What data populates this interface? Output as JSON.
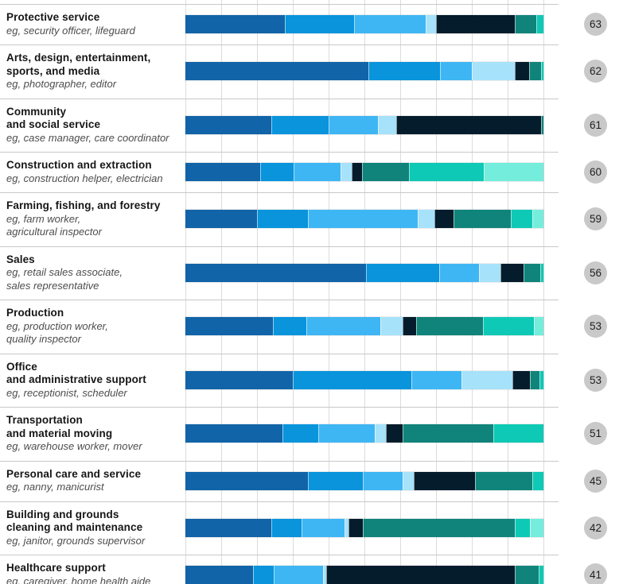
{
  "chart_data": {
    "type": "bar",
    "stacked": true,
    "orientation": "horizontal",
    "title": "",
    "xlabel": "",
    "ylabel": "",
    "x_range_percent": [
      0,
      100
    ],
    "gridline_interval_percent": 10,
    "grid": true,
    "legend": "not visible in crop",
    "colors": {
      "gridline": "#dcdcdc",
      "row_separator": "#c8c8c8",
      "badge_background": "#c9c9c9",
      "badge_text": "#1f1f1f",
      "title_text": "#161616",
      "subtitle_text": "#4d4d4d"
    },
    "segment_colors": [
      {
        "name": "dark-blue",
        "hex": "#1164A8"
      },
      {
        "name": "blue",
        "hex": "#0994DC"
      },
      {
        "name": "light-blue",
        "hex": "#3FB6F4"
      },
      {
        "name": "pale-blue",
        "hex": "#A6E2FA"
      },
      {
        "name": "navy",
        "hex": "#051C2C"
      },
      {
        "name": "dark-teal",
        "hex": "#10847B"
      },
      {
        "name": "teal",
        "hex": "#0EC9B5"
      },
      {
        "name": "mint",
        "hex": "#75EDDC"
      }
    ],
    "rows": [
      {
        "title": "Protective service",
        "subtitle": "eg, security officer, lifeguard",
        "score": "63",
        "values": [
          27.8,
          19.3,
          20.0,
          3.0,
          22.0,
          6.0,
          1.9,
          0
        ]
      },
      {
        "title": "Arts, design, entertainment,\nsports, and media",
        "subtitle": "eg, photographer, editor",
        "score": "62",
        "values": [
          51.0,
          20.0,
          9.0,
          12.0,
          4.0,
          3.3,
          0.7,
          0
        ]
      },
      {
        "title": "Community\nand social service",
        "subtitle": "eg, case manager, care coordinator",
        "score": "61",
        "values": [
          24.0,
          16.0,
          13.8,
          5.0,
          40.5,
          0.7,
          0,
          0
        ]
      },
      {
        "title": "Construction and extraction",
        "subtitle": "eg, construction helper, electrician",
        "score": "60",
        "values": [
          20.8,
          9.4,
          13.2,
          3.0,
          3.0,
          13.0,
          20.9,
          16.7
        ]
      },
      {
        "title": "Farming, fishing, and forestry",
        "subtitle": "eg, farm worker,\nagricultural inspector",
        "score": "59",
        "values": [
          20.0,
          14.2,
          30.6,
          4.7,
          5.3,
          16.2,
          6.0,
          3.0
        ]
      },
      {
        "title": "Sales",
        "subtitle": "eg, retail sales associate,\nsales representative",
        "score": "56",
        "values": [
          50.5,
          20.4,
          11.0,
          6.2,
          6.3,
          4.7,
          0.9,
          0
        ]
      },
      {
        "title": "Production",
        "subtitle": "eg, production worker,\nquality inspector",
        "score": "53",
        "values": [
          24.4,
          9.3,
          20.7,
          6.2,
          3.9,
          18.6,
          14.2,
          2.7
        ]
      },
      {
        "title": "Office\nand administrative support",
        "subtitle": "eg, receptionist, scheduler",
        "score": "53",
        "values": [
          30.0,
          33.2,
          13.9,
          14.2,
          4.9,
          2.8,
          1.0,
          0
        ]
      },
      {
        "title": "Transportation\nand material moving",
        "subtitle": "eg, warehouse worker, mover",
        "score": "51",
        "values": [
          27.0,
          10.0,
          15.8,
          3.3,
          4.6,
          25.3,
          14.0,
          0
        ]
      },
      {
        "title": "Personal care and service",
        "subtitle": "eg, nanny, manicurist",
        "score": "45",
        "values": [
          34.3,
          15.2,
          11.1,
          3.1,
          17.2,
          16.1,
          3.0,
          0
        ]
      },
      {
        "title": "Building and grounds\ncleaning and maintenance",
        "subtitle": "eg, janitor, grounds supervisor",
        "score": "42",
        "values": [
          24.1,
          8.4,
          12.0,
          1.1,
          3.9,
          42.6,
          4.1,
          3.8
        ]
      },
      {
        "title": "Healthcare support",
        "subtitle": "eg, caregiver, home health aide",
        "score": "41",
        "values": [
          18.8,
          5.8,
          13.8,
          1.0,
          52.6,
          6.7,
          1.3,
          0
        ]
      }
    ]
  }
}
